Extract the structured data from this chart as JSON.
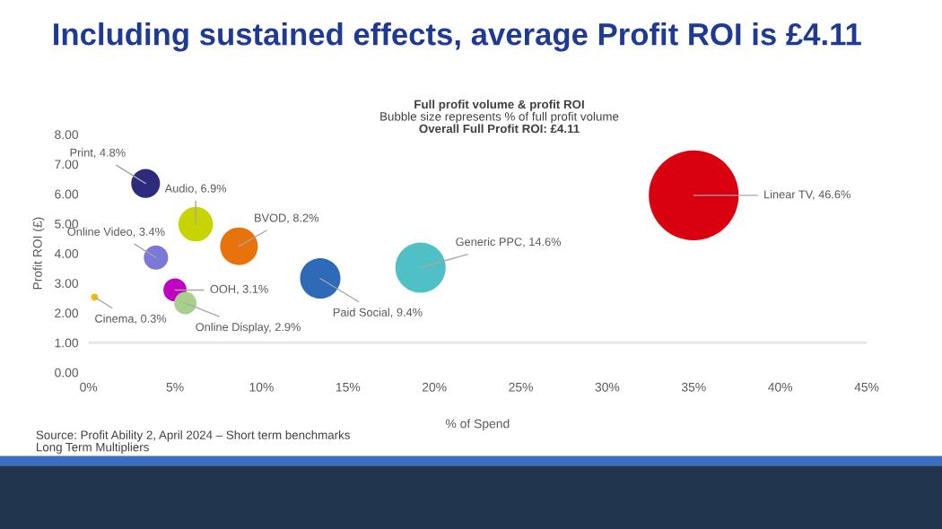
{
  "chart_data": {
    "type": "bubble",
    "title": "Including sustained effects, average Profit ROI is £4.11",
    "subtitle": "Full profit volume & profit ROI",
    "annotations": [
      "Bubble size represents % of full profit volume",
      "Overall Full Profit ROI: £4.11",
      "Source: Profit Ability 2, April 2024 – Short term benchmarks",
      "Long Term Multipliers"
    ],
    "xlabel": "% of Spend",
    "ylabel": "Profit ROI (£)",
    "x": [
      3.3,
      6.2,
      8.7,
      3.9,
      5.0,
      5.6,
      0.35,
      13.4,
      19.2,
      35.0
    ],
    "values": [
      6.35,
      4.98,
      4.24,
      3.86,
      2.77,
      2.33,
      2.53,
      3.16,
      3.52,
      5.95
    ],
    "sizes": [
      4.8,
      6.9,
      8.2,
      3.4,
      3.1,
      2.9,
      0.3,
      9.4,
      14.6,
      46.6
    ],
    "value_labels": [
      "Print, 4.8%",
      "Audio, 6.9%",
      "BVOD, 8.2%",
      "Online Video, 3.4%",
      "OOH, 3.1%",
      "Online Display, 2.9%",
      "Cinema, 0.3%",
      "Paid Social, 9.4%",
      "Generic PPC, 14.6%",
      "Linear TV, 46.6%"
    ],
    "colors": [
      "#2e2a7e",
      "#c8d400",
      "#e8720c",
      "#7b78d8",
      "#c000c0",
      "#a8d08d",
      "#f0c000",
      "#2e6ab8",
      "#4fc1c6",
      "#d90010"
    ],
    "xlim": [
      0,
      45
    ],
    "xticks": [
      {
        "value": 0,
        "label": "0%"
      },
      {
        "value": 5,
        "label": "5%"
      },
      {
        "value": 10,
        "label": "10%"
      },
      {
        "value": 15,
        "label": "15%"
      },
      {
        "value": 20,
        "label": "20%"
      },
      {
        "value": 25,
        "label": "25%"
      },
      {
        "value": 30,
        "label": "30%"
      },
      {
        "value": 35,
        "label": "35%"
      },
      {
        "value": 40,
        "label": "40%"
      },
      {
        "value": 45,
        "label": "45%"
      }
    ],
    "ylim": [
      0,
      8
    ],
    "yticks": [
      {
        "value": 0,
        "label": "0.00"
      },
      {
        "value": 1,
        "label": "1.00"
      },
      {
        "value": 2,
        "label": "2.00"
      },
      {
        "value": 3,
        "label": "3.00"
      },
      {
        "value": 4,
        "label": "4.00"
      },
      {
        "value": 5,
        "label": "5.00"
      },
      {
        "value": 6,
        "label": "6.00"
      },
      {
        "value": 7,
        "label": "7.00"
      },
      {
        "value": 8,
        "label": "8.00"
      }
    ],
    "ref_lines": [
      {
        "axis": "y",
        "value": 1,
        "color": "#e6e6e6"
      }
    ],
    "grid": false,
    "legend": false
  }
}
